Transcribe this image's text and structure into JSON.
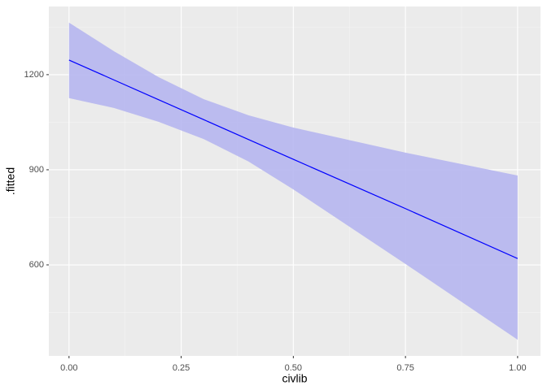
{
  "chart_data": {
    "type": "line",
    "x_label": "civlib",
    "y_label": ".fitted",
    "x": [
      0,
      0.1,
      0.2,
      0.3,
      0.4,
      0.5,
      0.75,
      1
    ],
    "values": [
      1246,
      1183.4,
      1120.8,
      1058.2,
      995.6,
      933,
      777.5,
      620
    ],
    "upper": [
      1364,
      1274,
      1192,
      1123,
      1072,
      1033,
      954,
      882
    ],
    "lower": [
      1126,
      1095,
      1051,
      997,
      926,
      838,
      603,
      364
    ],
    "color": "#0000ff",
    "band_color": "#b6b6f0",
    "xlim": [
      -0.045,
      1.051
    ],
    "ylim": [
      313,
      1415
    ],
    "xticks": [
      {
        "value": 0,
        "label": "0.00"
      },
      {
        "value": 0.25,
        "label": "0.25"
      },
      {
        "value": 0.5,
        "label": "0.50"
      },
      {
        "value": 0.75,
        "label": "0.75"
      },
      {
        "value": 1,
        "label": "1.00"
      }
    ],
    "yticks": [
      600,
      900,
      1200
    ],
    "grid": true
  }
}
